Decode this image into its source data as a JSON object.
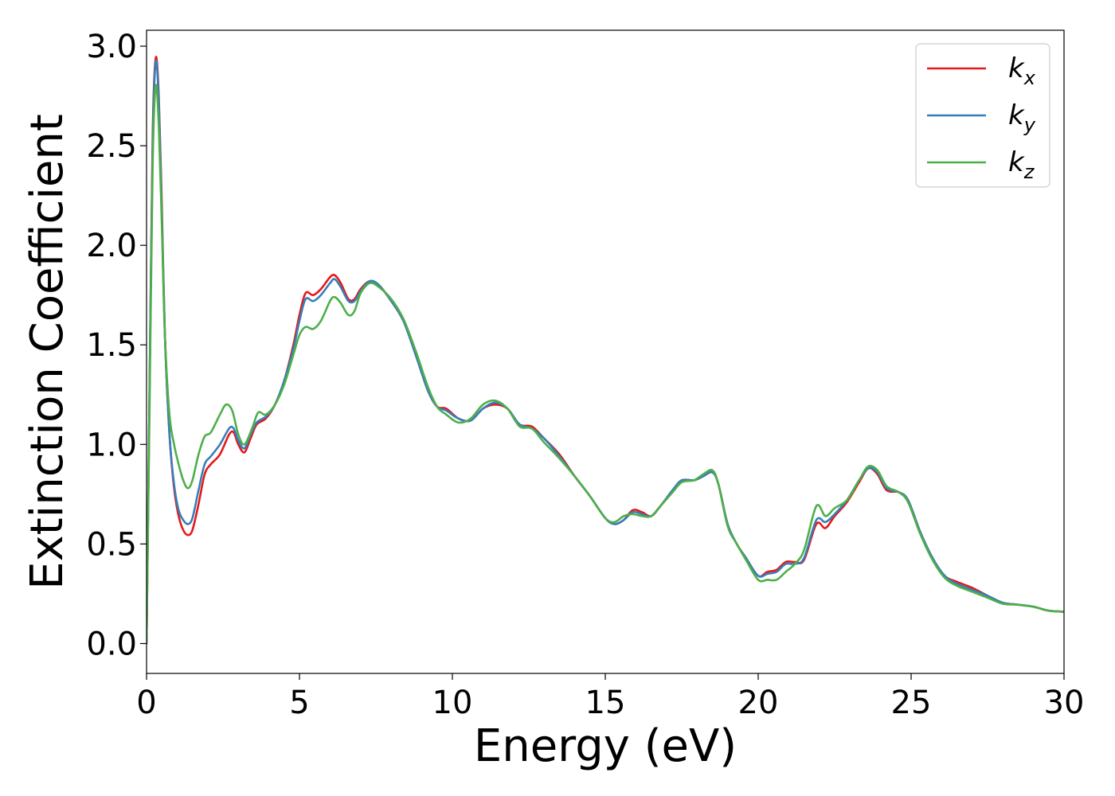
{
  "chart_data": {
    "type": "line",
    "title": "",
    "xlabel": "Energy (eV)",
    "ylabel": "Extinction Coefficient",
    "xlim": [
      0,
      30
    ],
    "ylim": [
      -0.15,
      3.08
    ],
    "xticks": [
      0,
      5,
      10,
      15,
      20,
      25,
      30
    ],
    "xtick_labels": [
      "0",
      "5",
      "10",
      "15",
      "20",
      "25",
      "30"
    ],
    "yticks": [
      0.0,
      0.5,
      1.0,
      1.5,
      2.0,
      2.5,
      3.0
    ],
    "ytick_labels": [
      "0.0",
      "0.5",
      "1.0",
      "1.5",
      "2.0",
      "2.5",
      "3.0"
    ],
    "grid": false,
    "legend": {
      "position": "top-right"
    },
    "series": [
      {
        "name": "k_x",
        "label_base": "k",
        "label_sub": "x",
        "color": "#e41a1c",
        "points": [
          [
            0,
            0.0
          ],
          [
            0.1,
            1.3
          ],
          [
            0.2,
            2.55
          ],
          [
            0.3,
            2.94
          ],
          [
            0.4,
            2.75
          ],
          [
            0.5,
            2.2
          ],
          [
            0.6,
            1.55
          ],
          [
            0.75,
            1.05
          ],
          [
            0.9,
            0.78
          ],
          [
            1.05,
            0.64
          ],
          [
            1.2,
            0.57
          ],
          [
            1.35,
            0.545
          ],
          [
            1.5,
            0.57
          ],
          [
            1.7,
            0.7
          ],
          [
            1.9,
            0.85
          ],
          [
            2.1,
            0.9
          ],
          [
            2.4,
            0.95
          ],
          [
            2.7,
            1.05
          ],
          [
            2.85,
            1.06
          ],
          [
            3.0,
            1.0
          ],
          [
            3.2,
            0.96
          ],
          [
            3.4,
            1.03
          ],
          [
            3.6,
            1.1
          ],
          [
            3.9,
            1.13
          ],
          [
            4.2,
            1.2
          ],
          [
            4.5,
            1.32
          ],
          [
            4.8,
            1.5
          ],
          [
            5.0,
            1.65
          ],
          [
            5.2,
            1.76
          ],
          [
            5.45,
            1.75
          ],
          [
            5.7,
            1.78
          ],
          [
            6.0,
            1.84
          ],
          [
            6.15,
            1.85
          ],
          [
            6.35,
            1.81
          ],
          [
            6.6,
            1.73
          ],
          [
            6.8,
            1.73
          ],
          [
            7.0,
            1.78
          ],
          [
            7.3,
            1.82
          ],
          [
            7.6,
            1.8
          ],
          [
            8.0,
            1.72
          ],
          [
            8.4,
            1.62
          ],
          [
            8.8,
            1.45
          ],
          [
            9.2,
            1.27
          ],
          [
            9.5,
            1.19
          ],
          [
            9.8,
            1.18
          ],
          [
            10.2,
            1.13
          ],
          [
            10.6,
            1.12
          ],
          [
            11.0,
            1.18
          ],
          [
            11.4,
            1.2
          ],
          [
            11.8,
            1.18
          ],
          [
            12.2,
            1.1
          ],
          [
            12.6,
            1.09
          ],
          [
            13.0,
            1.03
          ],
          [
            13.5,
            0.95
          ],
          [
            14.0,
            0.84
          ],
          [
            14.5,
            0.74
          ],
          [
            15.0,
            0.63
          ],
          [
            15.3,
            0.6
          ],
          [
            15.6,
            0.62
          ],
          [
            15.9,
            0.67
          ],
          [
            16.2,
            0.66
          ],
          [
            16.5,
            0.64
          ],
          [
            16.8,
            0.69
          ],
          [
            17.2,
            0.77
          ],
          [
            17.5,
            0.82
          ],
          [
            17.9,
            0.82
          ],
          [
            18.2,
            0.84
          ],
          [
            18.5,
            0.86
          ],
          [
            18.7,
            0.8
          ],
          [
            19.0,
            0.6
          ],
          [
            19.3,
            0.5
          ],
          [
            19.6,
            0.43
          ],
          [
            20.0,
            0.34
          ],
          [
            20.3,
            0.36
          ],
          [
            20.6,
            0.37
          ],
          [
            20.9,
            0.41
          ],
          [
            21.2,
            0.41
          ],
          [
            21.5,
            0.42
          ],
          [
            21.9,
            0.6
          ],
          [
            22.2,
            0.58
          ],
          [
            22.5,
            0.64
          ],
          [
            22.9,
            0.71
          ],
          [
            23.3,
            0.81
          ],
          [
            23.6,
            0.88
          ],
          [
            23.9,
            0.85
          ],
          [
            24.2,
            0.77
          ],
          [
            24.6,
            0.76
          ],
          [
            24.9,
            0.72
          ],
          [
            25.3,
            0.56
          ],
          [
            25.7,
            0.43
          ],
          [
            26.1,
            0.34
          ],
          [
            26.5,
            0.31
          ],
          [
            27.0,
            0.28
          ],
          [
            27.5,
            0.24
          ],
          [
            28.0,
            0.205
          ],
          [
            28.5,
            0.195
          ],
          [
            29.0,
            0.185
          ],
          [
            29.5,
            0.165
          ],
          [
            30.0,
            0.16
          ]
        ]
      },
      {
        "name": "k_y",
        "label_base": "k",
        "label_sub": "y",
        "color": "#377eb8",
        "points": [
          [
            0,
            0.0
          ],
          [
            0.1,
            1.3
          ],
          [
            0.2,
            2.5
          ],
          [
            0.3,
            2.92
          ],
          [
            0.4,
            2.72
          ],
          [
            0.5,
            2.15
          ],
          [
            0.6,
            1.55
          ],
          [
            0.75,
            1.05
          ],
          [
            0.9,
            0.8
          ],
          [
            1.05,
            0.67
          ],
          [
            1.2,
            0.62
          ],
          [
            1.35,
            0.6
          ],
          [
            1.5,
            0.63
          ],
          [
            1.7,
            0.77
          ],
          [
            1.9,
            0.9
          ],
          [
            2.1,
            0.94
          ],
          [
            2.4,
            1.0
          ],
          [
            2.7,
            1.08
          ],
          [
            2.85,
            1.08
          ],
          [
            3.0,
            1.02
          ],
          [
            3.2,
            0.98
          ],
          [
            3.4,
            1.05
          ],
          [
            3.6,
            1.11
          ],
          [
            3.9,
            1.14
          ],
          [
            4.2,
            1.2
          ],
          [
            4.5,
            1.32
          ],
          [
            4.8,
            1.48
          ],
          [
            5.0,
            1.62
          ],
          [
            5.2,
            1.73
          ],
          [
            5.45,
            1.72
          ],
          [
            5.7,
            1.75
          ],
          [
            6.0,
            1.81
          ],
          [
            6.15,
            1.83
          ],
          [
            6.35,
            1.79
          ],
          [
            6.6,
            1.72
          ],
          [
            6.8,
            1.72
          ],
          [
            7.0,
            1.77
          ],
          [
            7.3,
            1.82
          ],
          [
            7.6,
            1.8
          ],
          [
            8.0,
            1.72
          ],
          [
            8.4,
            1.62
          ],
          [
            8.8,
            1.45
          ],
          [
            9.2,
            1.27
          ],
          [
            9.5,
            1.19
          ],
          [
            9.8,
            1.17
          ],
          [
            10.2,
            1.13
          ],
          [
            10.6,
            1.12
          ],
          [
            11.0,
            1.18
          ],
          [
            11.4,
            1.21
          ],
          [
            11.8,
            1.18
          ],
          [
            12.2,
            1.1
          ],
          [
            12.6,
            1.08
          ],
          [
            13.0,
            1.03
          ],
          [
            13.5,
            0.94
          ],
          [
            14.0,
            0.84
          ],
          [
            14.5,
            0.74
          ],
          [
            15.0,
            0.63
          ],
          [
            15.3,
            0.6
          ],
          [
            15.6,
            0.62
          ],
          [
            15.9,
            0.66
          ],
          [
            16.2,
            0.65
          ],
          [
            16.5,
            0.64
          ],
          [
            16.8,
            0.69
          ],
          [
            17.2,
            0.77
          ],
          [
            17.5,
            0.82
          ],
          [
            17.9,
            0.82
          ],
          [
            18.2,
            0.84
          ],
          [
            18.5,
            0.86
          ],
          [
            18.7,
            0.8
          ],
          [
            19.0,
            0.6
          ],
          [
            19.3,
            0.5
          ],
          [
            19.6,
            0.43
          ],
          [
            20.0,
            0.34
          ],
          [
            20.3,
            0.35
          ],
          [
            20.6,
            0.36
          ],
          [
            20.9,
            0.4
          ],
          [
            21.2,
            0.4
          ],
          [
            21.5,
            0.43
          ],
          [
            21.9,
            0.62
          ],
          [
            22.2,
            0.61
          ],
          [
            22.5,
            0.65
          ],
          [
            22.9,
            0.72
          ],
          [
            23.3,
            0.82
          ],
          [
            23.6,
            0.88
          ],
          [
            23.9,
            0.86
          ],
          [
            24.2,
            0.78
          ],
          [
            24.6,
            0.76
          ],
          [
            24.9,
            0.72
          ],
          [
            25.3,
            0.56
          ],
          [
            25.7,
            0.43
          ],
          [
            26.1,
            0.34
          ],
          [
            26.5,
            0.3
          ],
          [
            27.0,
            0.27
          ],
          [
            27.5,
            0.24
          ],
          [
            28.0,
            0.205
          ],
          [
            28.5,
            0.195
          ],
          [
            29.0,
            0.185
          ],
          [
            29.5,
            0.165
          ],
          [
            30.0,
            0.16
          ]
        ]
      },
      {
        "name": "k_z",
        "label_base": "k",
        "label_sub": "z",
        "color": "#4daf4a",
        "points": [
          [
            0,
            0.0
          ],
          [
            0.1,
            1.2
          ],
          [
            0.2,
            2.4
          ],
          [
            0.3,
            2.8
          ],
          [
            0.4,
            2.6
          ],
          [
            0.5,
            2.1
          ],
          [
            0.6,
            1.55
          ],
          [
            0.75,
            1.15
          ],
          [
            0.9,
            1.0
          ],
          [
            1.05,
            0.9
          ],
          [
            1.2,
            0.82
          ],
          [
            1.35,
            0.78
          ],
          [
            1.5,
            0.82
          ],
          [
            1.7,
            0.95
          ],
          [
            1.9,
            1.04
          ],
          [
            2.1,
            1.06
          ],
          [
            2.4,
            1.15
          ],
          [
            2.6,
            1.2
          ],
          [
            2.8,
            1.17
          ],
          [
            3.0,
            1.05
          ],
          [
            3.2,
            1.0
          ],
          [
            3.45,
            1.08
          ],
          [
            3.65,
            1.16
          ],
          [
            3.9,
            1.15
          ],
          [
            4.2,
            1.2
          ],
          [
            4.5,
            1.3
          ],
          [
            4.8,
            1.45
          ],
          [
            5.0,
            1.55
          ],
          [
            5.2,
            1.59
          ],
          [
            5.45,
            1.58
          ],
          [
            5.7,
            1.62
          ],
          [
            6.0,
            1.72
          ],
          [
            6.15,
            1.74
          ],
          [
            6.35,
            1.71
          ],
          [
            6.6,
            1.65
          ],
          [
            6.8,
            1.67
          ],
          [
            7.0,
            1.76
          ],
          [
            7.3,
            1.81
          ],
          [
            7.6,
            1.79
          ],
          [
            8.0,
            1.73
          ],
          [
            8.4,
            1.63
          ],
          [
            8.8,
            1.47
          ],
          [
            9.2,
            1.29
          ],
          [
            9.5,
            1.19
          ],
          [
            9.8,
            1.15
          ],
          [
            10.2,
            1.11
          ],
          [
            10.6,
            1.13
          ],
          [
            11.0,
            1.2
          ],
          [
            11.4,
            1.22
          ],
          [
            11.8,
            1.18
          ],
          [
            12.2,
            1.09
          ],
          [
            12.6,
            1.08
          ],
          [
            13.0,
            1.01
          ],
          [
            13.5,
            0.93
          ],
          [
            14.0,
            0.84
          ],
          [
            14.5,
            0.74
          ],
          [
            15.0,
            0.63
          ],
          [
            15.3,
            0.61
          ],
          [
            15.6,
            0.64
          ],
          [
            15.9,
            0.65
          ],
          [
            16.2,
            0.64
          ],
          [
            16.5,
            0.64
          ],
          [
            16.8,
            0.69
          ],
          [
            17.2,
            0.76
          ],
          [
            17.5,
            0.81
          ],
          [
            17.9,
            0.82
          ],
          [
            18.2,
            0.85
          ],
          [
            18.5,
            0.87
          ],
          [
            18.7,
            0.8
          ],
          [
            19.0,
            0.59
          ],
          [
            19.3,
            0.5
          ],
          [
            19.6,
            0.42
          ],
          [
            20.0,
            0.32
          ],
          [
            20.3,
            0.32
          ],
          [
            20.6,
            0.32
          ],
          [
            20.9,
            0.36
          ],
          [
            21.2,
            0.4
          ],
          [
            21.5,
            0.47
          ],
          [
            21.9,
            0.69
          ],
          [
            22.2,
            0.64
          ],
          [
            22.5,
            0.68
          ],
          [
            22.9,
            0.72
          ],
          [
            23.3,
            0.82
          ],
          [
            23.6,
            0.89
          ],
          [
            23.9,
            0.87
          ],
          [
            24.2,
            0.79
          ],
          [
            24.6,
            0.76
          ],
          [
            24.9,
            0.71
          ],
          [
            25.3,
            0.55
          ],
          [
            25.7,
            0.42
          ],
          [
            26.1,
            0.33
          ],
          [
            26.5,
            0.29
          ],
          [
            27.0,
            0.26
          ],
          [
            27.5,
            0.23
          ],
          [
            28.0,
            0.2
          ],
          [
            28.5,
            0.195
          ],
          [
            29.0,
            0.185
          ],
          [
            29.5,
            0.165
          ],
          [
            30.0,
            0.16
          ]
        ]
      }
    ]
  }
}
